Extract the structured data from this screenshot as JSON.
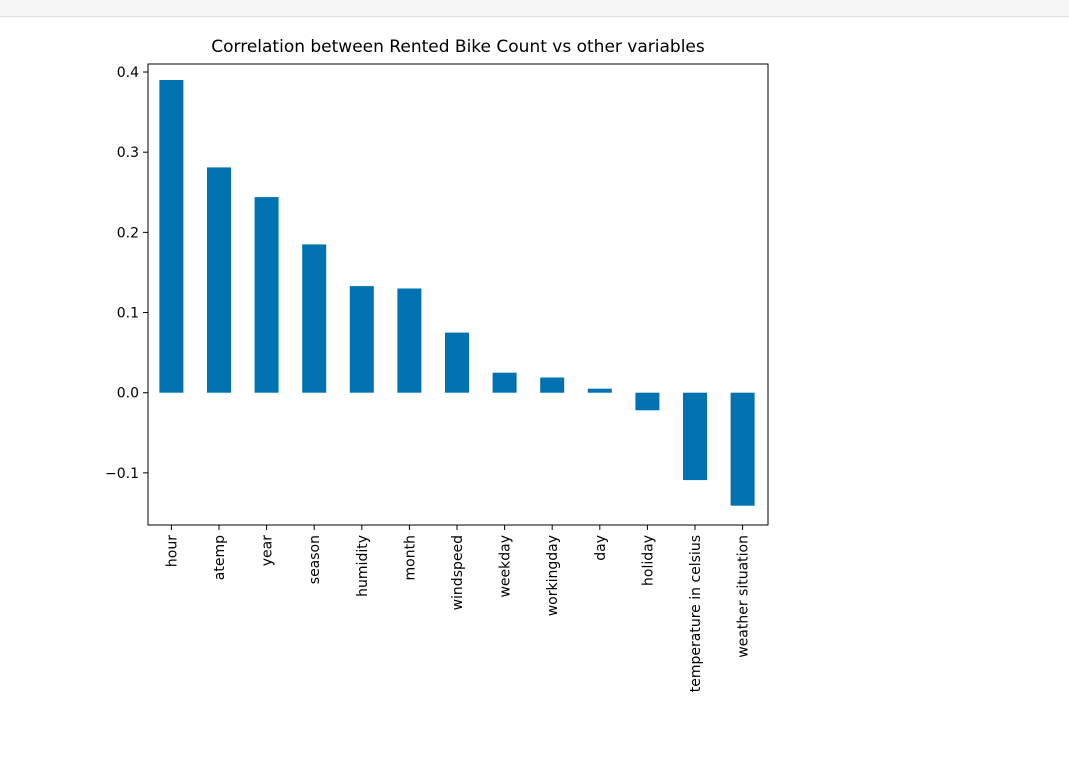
{
  "chart_data": {
    "type": "bar",
    "title": "Correlation between Rented Bike Count vs other variables",
    "xlabel": "",
    "ylabel": "",
    "ylim": [
      -0.165,
      0.41
    ],
    "yticks": [
      {
        "value": -0.1,
        "label": "−0.1"
      },
      {
        "value": 0.0,
        "label": "0.0"
      },
      {
        "value": 0.1,
        "label": "0.1"
      },
      {
        "value": 0.2,
        "label": "0.2"
      },
      {
        "value": 0.3,
        "label": "0.3"
      },
      {
        "value": 0.4,
        "label": "0.4"
      }
    ],
    "categories": [
      "hour",
      "atemp",
      "year",
      "season",
      "humidity",
      "month",
      "windspeed",
      "weekday",
      "workingday",
      "day",
      "holiday",
      "temperature in celsius",
      "weather situation"
    ],
    "values": [
      0.39,
      0.281,
      0.244,
      0.185,
      0.133,
      0.13,
      0.075,
      0.025,
      0.019,
      0.005,
      -0.022,
      -0.109,
      -0.141
    ],
    "bar_color": "#0072b2",
    "grid": false,
    "legend": "none"
  }
}
